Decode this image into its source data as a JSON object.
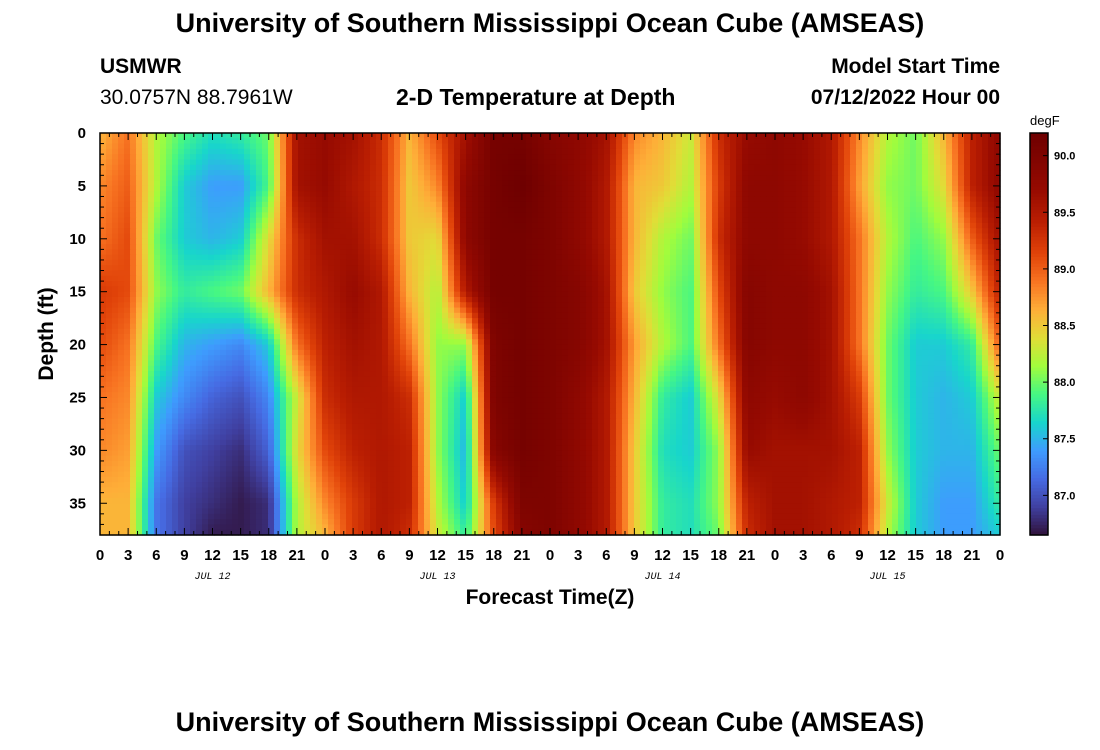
{
  "header": {
    "title_top": "University of Southern Mississippi Ocean Cube (AMSEAS)",
    "title_bottom": "University of Southern Mississippi Ocean Cube (AMSEAS)",
    "station_name": "USMWR",
    "station_coords": "30.0757N  88.7961W",
    "plot_title": "2-D Temperature at Depth",
    "start_label": "Model Start Time",
    "start_value": "07/12/2022 Hour 00"
  },
  "chart_data": {
    "type": "heatmap",
    "title": "2-D Temperature at Depth",
    "xlabel": "Forecast Time(Z)",
    "ylabel": "Depth (ft)",
    "x_tick_labels": [
      "0",
      "3",
      "6",
      "9",
      "12",
      "15",
      "18",
      "21",
      "0",
      "3",
      "6",
      "9",
      "12",
      "15",
      "18",
      "21",
      "0",
      "3",
      "6",
      "9",
      "12",
      "15",
      "18",
      "21",
      "0",
      "3",
      "6",
      "9",
      "12",
      "15",
      "18",
      "21",
      "0"
    ],
    "x_range_hours": [
      0,
      96
    ],
    "day_labels": [
      {
        "label": "JUL 12",
        "hour": 12
      },
      {
        "label": "JUL 13",
        "hour": 36
      },
      {
        "label": "JUL 14",
        "hour": 60
      },
      {
        "label": "JUL 15",
        "hour": 84
      }
    ],
    "y_ticks": [
      0,
      5,
      10,
      15,
      20,
      25,
      30,
      35
    ],
    "ylim": [
      38,
      0
    ],
    "colorbar": {
      "units": "degF",
      "ticks": [
        87.0,
        87.5,
        88.0,
        88.5,
        89.0,
        89.5,
        90.0
      ],
      "range": [
        86.65,
        90.2
      ]
    },
    "depths_ft": [
      0,
      5,
      10,
      15,
      20,
      25,
      30,
      35,
      38
    ],
    "times_hours": [
      0,
      3,
      6,
      9,
      12,
      15,
      18,
      21,
      24,
      27,
      30,
      33,
      36,
      39,
      42,
      45,
      48,
      51,
      54,
      57,
      60,
      63,
      66,
      69,
      72,
      75,
      78,
      81,
      84,
      87,
      90,
      93,
      96
    ],
    "values_by_depth": [
      [
        88.6,
        88.9,
        88.2,
        87.9,
        87.7,
        87.8,
        88.0,
        89.6,
        89.7,
        89.6,
        89.3,
        88.6,
        89.1,
        89.6,
        90.1,
        90.1,
        89.9,
        89.8,
        89.6,
        88.8,
        88.6,
        88.3,
        89.3,
        89.7,
        89.8,
        89.7,
        89.5,
        88.8,
        88.2,
        88.0,
        88.6,
        89.4,
        89.8
      ],
      [
        88.8,
        89.0,
        88.2,
        87.6,
        87.4,
        87.4,
        87.9,
        89.6,
        89.7,
        89.5,
        89.3,
        88.5,
        88.8,
        89.8,
        90.1,
        90.2,
        90.0,
        89.8,
        89.5,
        88.6,
        88.5,
        88.2,
        89.2,
        89.8,
        89.8,
        89.7,
        89.5,
        88.7,
        88.1,
        88.0,
        88.4,
        89.4,
        89.8
      ],
      [
        88.9,
        89.1,
        88.0,
        87.6,
        87.5,
        87.6,
        88.4,
        89.3,
        89.6,
        89.6,
        89.3,
        88.5,
        88.4,
        89.8,
        90.1,
        90.1,
        90.0,
        89.8,
        89.5,
        88.6,
        88.2,
        88.0,
        89.3,
        89.8,
        89.8,
        89.7,
        89.5,
        88.9,
        88.2,
        87.9,
        88.1,
        89.0,
        89.6
      ],
      [
        89.2,
        89.1,
        88.1,
        87.8,
        87.9,
        88.0,
        88.6,
        89.3,
        89.5,
        89.7,
        89.5,
        88.6,
        88.2,
        89.5,
        90.1,
        90.1,
        90.0,
        89.9,
        89.6,
        88.5,
        88.1,
        87.9,
        89.1,
        89.9,
        89.8,
        89.8,
        89.6,
        88.9,
        88.1,
        87.8,
        87.9,
        88.5,
        89.4
      ],
      [
        89.1,
        88.9,
        87.9,
        87.5,
        87.4,
        87.3,
        87.6,
        88.9,
        89.4,
        89.6,
        89.5,
        88.9,
        88.1,
        88.1,
        90.0,
        90.1,
        90.0,
        89.9,
        89.6,
        88.7,
        88.2,
        87.9,
        88.9,
        89.9,
        89.8,
        89.8,
        89.6,
        88.9,
        88.0,
        87.6,
        87.6,
        87.8,
        89.0
      ],
      [
        88.9,
        88.8,
        87.6,
        87.3,
        87.1,
        87.0,
        87.3,
        88.3,
        89.3,
        89.5,
        89.5,
        89.3,
        88.1,
        87.6,
        90.0,
        90.1,
        90.0,
        89.8,
        89.5,
        88.6,
        87.8,
        87.6,
        88.4,
        89.8,
        89.7,
        89.8,
        89.6,
        89.2,
        88.0,
        87.6,
        87.5,
        87.6,
        88.3
      ],
      [
        88.8,
        88.7,
        87.4,
        87.0,
        86.9,
        86.8,
        87.1,
        88.4,
        89.1,
        89.4,
        89.5,
        89.4,
        88.1,
        87.5,
        89.9,
        90.1,
        90.0,
        89.8,
        89.5,
        88.5,
        87.7,
        87.6,
        88.1,
        89.7,
        89.6,
        89.6,
        89.6,
        89.4,
        88.1,
        87.6,
        87.5,
        87.5,
        88.0
      ],
      [
        88.6,
        88.6,
        87.2,
        86.9,
        86.8,
        86.7,
        86.8,
        88.2,
        88.8,
        89.2,
        89.5,
        89.4,
        88.2,
        87.6,
        89.2,
        90.0,
        90.0,
        89.8,
        89.5,
        88.5,
        87.8,
        87.7,
        88.1,
        89.4,
        89.6,
        89.6,
        89.5,
        89.4,
        88.3,
        87.6,
        87.4,
        87.4,
        87.8
      ],
      [
        88.6,
        88.6,
        87.2,
        86.9,
        86.7,
        86.7,
        86.8,
        88.2,
        88.6,
        89.2,
        89.5,
        89.3,
        88.3,
        87.8,
        89.1,
        89.9,
        90.0,
        89.8,
        89.5,
        88.5,
        87.8,
        87.7,
        88.0,
        89.3,
        89.6,
        89.6,
        89.5,
        89.3,
        88.2,
        87.6,
        87.4,
        87.4,
        87.6
      ]
    ]
  }
}
